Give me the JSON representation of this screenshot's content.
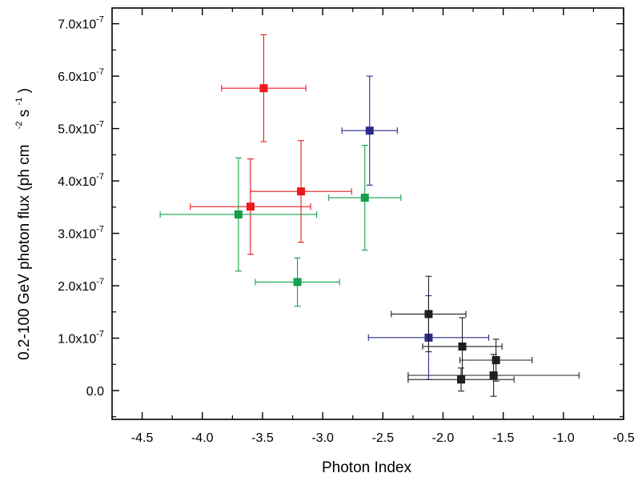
{
  "chart_data": {
    "type": "scatter",
    "xlabel": "Photon Index",
    "ylabel": "0.2-100 GeV photon flux (ph cm-2 s-1)",
    "ylabel_parts": {
      "main": "0.2-100 GeV photon flux (ph cm",
      "exp1": "-2",
      "mid": " s",
      "exp2": "-1",
      "end": ")"
    },
    "xlim": [
      -4.75,
      -0.5
    ],
    "ylim": [
      -5.5e-08,
      7.3e-07
    ],
    "x_ticks": [
      -4.5,
      -4.0,
      -3.5,
      -3.0,
      -2.5,
      -2.0,
      -1.5,
      -1.0,
      -0.5
    ],
    "x_tick_labels": [
      "-4.5",
      "-4.0",
      "-3.5",
      "-3.0",
      "-2.5",
      "-2.0",
      "-1.5",
      "-1.0",
      "-0.5"
    ],
    "y_ticks": [
      0,
      1e-07,
      2e-07,
      3e-07,
      4e-07,
      5e-07,
      6e-07,
      7e-07
    ],
    "y_tick_labels": [
      {
        "mant": "0.0",
        "exp": ""
      },
      {
        "mant": "1.0x10",
        "exp": "-7"
      },
      {
        "mant": "2.0x10",
        "exp": "-7"
      },
      {
        "mant": "3.0x10",
        "exp": "-7"
      },
      {
        "mant": "4.0x10",
        "exp": "-7"
      },
      {
        "mant": "5.0x10",
        "exp": "-7"
      },
      {
        "mant": "6.0x10",
        "exp": "-7"
      },
      {
        "mant": "7.0x10",
        "exp": "-7"
      }
    ],
    "grid": false,
    "series": [
      {
        "color": "#e8191f",
        "points": [
          {
            "x": -3.49,
            "y": 5.77e-07,
            "xerr": [
              0.35,
              0.35
            ],
            "yerr": [
              1.02e-07,
              1.02e-07
            ]
          },
          {
            "x": -3.18,
            "y": 3.8e-07,
            "xerr": [
              0.42,
              0.42
            ],
            "yerr": [
              9.7e-08,
              9.7e-08
            ]
          },
          {
            "x": -3.6,
            "y": 3.51e-07,
            "xerr": [
              0.5,
              0.5
            ],
            "yerr": [
              9.1e-08,
              9.1e-08
            ]
          }
        ]
      },
      {
        "color": "#2b2b8f",
        "points": [
          {
            "x": -2.61,
            "y": 4.96e-07,
            "xerr": [
              0.23,
              0.23
            ],
            "yerr": [
              1.04e-07,
              1.04e-07
            ]
          },
          {
            "x": -2.12,
            "y": 1.01e-07,
            "xerr": [
              0.5,
              0.5
            ],
            "yerr": [
              8e-08,
              8e-08
            ]
          }
        ]
      },
      {
        "color": "#14a04a",
        "points": [
          {
            "x": -2.65,
            "y": 3.68e-07,
            "xerr": [
              0.3,
              0.3
            ],
            "yerr": [
              1e-07,
              1e-07
            ]
          },
          {
            "x": -3.7,
            "y": 3.36e-07,
            "xerr": [
              0.65,
              0.65
            ],
            "yerr": [
              1.08e-07,
              1.08e-07
            ]
          },
          {
            "x": -3.21,
            "y": 2.07e-07,
            "xerr": [
              0.35,
              0.35
            ],
            "yerr": [
              4.6e-08,
              4.6e-08
            ]
          }
        ]
      },
      {
        "color": "#1f1f1f",
        "points": [
          {
            "x": -2.12,
            "y": 1.46e-07,
            "xerr": [
              0.31,
              0.31
            ],
            "yerr": [
              7.2e-08,
              7.2e-08
            ]
          },
          {
            "x": -1.84,
            "y": 8.4e-08,
            "xerr": [
              0.33,
              0.33
            ],
            "yerr": [
              5.5e-08,
              5.5e-08
            ]
          },
          {
            "x": -1.56,
            "y": 5.8e-08,
            "xerr": [
              0.3,
              0.3
            ],
            "yerr": [
              4e-08,
              4e-08
            ]
          },
          {
            "x": -1.58,
            "y": 2.9e-08,
            "xerr": [
              0.71,
              0.71
            ],
            "yerr": [
              4e-08,
              4e-08
            ]
          },
          {
            "x": -1.85,
            "y": 2.1e-08,
            "xerr": [
              0.44,
              0.44
            ],
            "yerr": [
              2.2e-08,
              2.2e-08
            ]
          }
        ]
      }
    ]
  }
}
